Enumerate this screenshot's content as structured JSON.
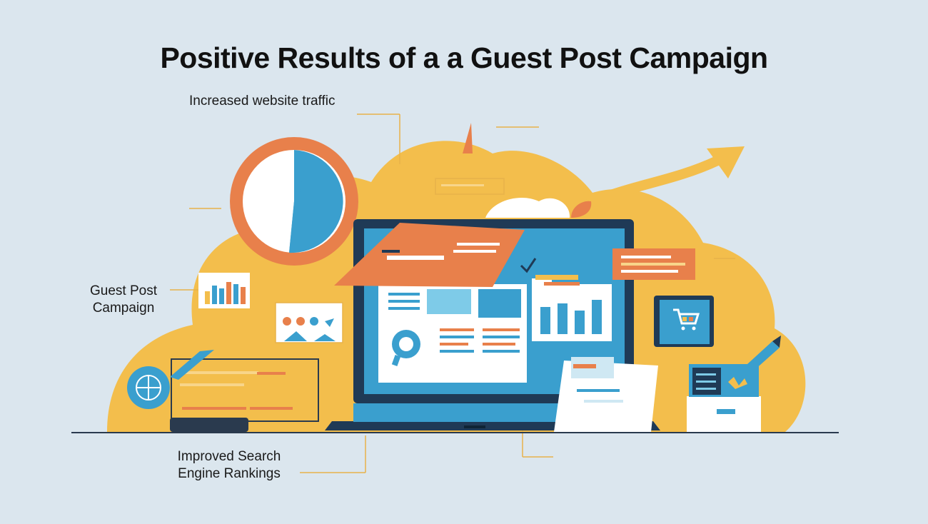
{
  "title": "Positive Results of a a Guest Post Campaign",
  "labels": {
    "traffic": "Increased website traffic",
    "guest_line1": "Guest Post",
    "guest_line2": "Campaign",
    "seo_line1": "Improved Search",
    "seo_line2": "Engine Rankings"
  },
  "colors": {
    "background": "#dbe6ee",
    "yellow": "#f3be4c",
    "orange": "#e8804b",
    "blue": "#3a9fce",
    "navy": "#1f3a56",
    "white": "#ffffff"
  },
  "icons": [
    "pie-chart-icon",
    "bar-chart-icon",
    "globe-icon",
    "search-icon",
    "cart-icon",
    "trend-arrow-icon",
    "pencil-icon"
  ]
}
